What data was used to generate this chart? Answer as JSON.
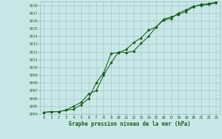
{
  "x": [
    0,
    1,
    2,
    3,
    4,
    5,
    6,
    7,
    8,
    9,
    10,
    11,
    12,
    13,
    14,
    15,
    16,
    17,
    18,
    19,
    20,
    21,
    22,
    23
  ],
  "line1": [
    1004.2,
    1004.3,
    1004.3,
    1004.5,
    1004.6,
    1005.2,
    1006.0,
    1008.0,
    1009.3,
    1011.8,
    1011.9,
    1012.3,
    1013.2,
    1013.8,
    1014.8,
    1015.2,
    1016.1,
    1016.3,
    1017.0,
    1017.4,
    1017.9,
    1018.0,
    1018.1,
    1018.3
  ],
  "line2": [
    1004.2,
    1004.3,
    1004.3,
    1004.5,
    1005.0,
    1005.5,
    1006.6,
    1007.0,
    1009.0,
    1010.6,
    1012.0,
    1011.9,
    1012.1,
    1013.1,
    1014.0,
    1015.2,
    1016.2,
    1016.5,
    1016.8,
    1017.2,
    1017.8,
    1018.1,
    1018.2,
    1018.4
  ],
  "line_color": "#1a5c1a",
  "bg_color": "#c8e8e8",
  "grid_color": "#9bbfbf",
  "xlabel": "Graphe pression niveau de la mer (hPa)",
  "ylim_min": 1004,
  "ylim_max": 1018.5,
  "xlim_min": -0.5,
  "xlim_max": 23.5,
  "yticks": [
    1004,
    1005,
    1006,
    1007,
    1008,
    1009,
    1010,
    1011,
    1012,
    1013,
    1014,
    1015,
    1016,
    1017,
    1018
  ],
  "xticks": [
    0,
    1,
    2,
    3,
    4,
    5,
    6,
    7,
    8,
    9,
    10,
    11,
    12,
    13,
    14,
    15,
    16,
    17,
    18,
    19,
    20,
    21,
    22,
    23
  ],
  "marker": "D",
  "markersize": 1.8,
  "linewidth": 0.8,
  "tick_fontsize": 4.0,
  "xlabel_fontsize": 5.5
}
